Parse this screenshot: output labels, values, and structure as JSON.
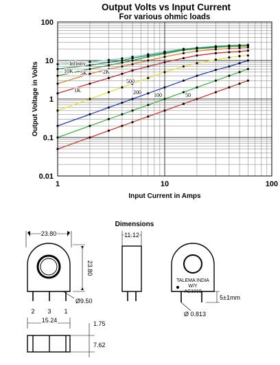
{
  "chart_data": {
    "type": "line",
    "title": "Output Volts vs Input Current",
    "subtitle": "For various ohmic loads",
    "xlabel": "Input Current in Amps",
    "ylabel": "Output Voltage in Volts",
    "xscale": "log",
    "yscale": "log",
    "xlim": [
      1,
      100
    ],
    "ylim": [
      0.01,
      100
    ],
    "xticks": [
      "1",
      "10",
      "100"
    ],
    "yticks": [
      "100",
      "10",
      "1",
      "0.1",
      "0.01"
    ],
    "grid": true,
    "x": [
      1,
      2,
      3,
      4,
      5,
      7,
      10,
      15,
      20,
      30,
      40,
      50,
      60
    ],
    "series": [
      {
        "name": "Infinity",
        "color": "#7fd3dc",
        "values": [
          8.0,
          9.2,
          10.3,
          11.3,
          12.5,
          14.5,
          17.0,
          20.0,
          21.5,
          23.5,
          24.5,
          25.0,
          25.5
        ]
      },
      {
        "name": "10K",
        "color": "#2e8b57",
        "values": [
          6.0,
          7.5,
          9.0,
          10.0,
          11.5,
          13.5,
          16.0,
          19.5,
          21.0,
          23.0,
          24.0,
          24.5,
          25.0
        ]
      },
      {
        "name": "5K",
        "color": "#3a9a3a",
        "values": [
          4.0,
          6.0,
          7.5,
          8.8,
          10.0,
          12.5,
          15.0,
          18.5,
          20.0,
          22.0,
          23.0,
          23.5,
          24.0
        ]
      },
      {
        "name": "2K",
        "color": "#e08030",
        "values": [
          2.5,
          4.5,
          6.0,
          7.0,
          8.0,
          10.0,
          12.5,
          15.5,
          17.5,
          19.5,
          20.5,
          21.0,
          22.0
        ]
      },
      {
        "name": "1K",
        "color": "#d42a2a",
        "values": [
          1.4,
          2.5,
          3.5,
          4.5,
          5.5,
          7.0,
          9.0,
          11.5,
          13.5,
          15.5,
          16.5,
          17.0,
          18.0
        ]
      },
      {
        "name": "500",
        "color": "#e8e040",
        "values": [
          0.5,
          1.0,
          1.5,
          2.0,
          2.5,
          3.5,
          5.0,
          7.0,
          8.5,
          10.5,
          12.0,
          13.0,
          13.5
        ]
      },
      {
        "name": "200",
        "color": "#2040c0",
        "values": [
          0.2,
          0.4,
          0.6,
          0.8,
          1.0,
          1.4,
          2.0,
          3.0,
          4.0,
          5.7,
          7.0,
          8.5,
          10.0
        ]
      },
      {
        "name": "100",
        "color": "#39b839",
        "values": [
          0.1,
          0.2,
          0.3,
          0.4,
          0.5,
          0.7,
          1.0,
          1.5,
          2.0,
          3.0,
          4.0,
          5.0,
          6.0
        ]
      },
      {
        "name": "50",
        "color": "#d0362a",
        "values": [
          0.05,
          0.1,
          0.15,
          0.2,
          0.25,
          0.35,
          0.5,
          0.75,
          1.0,
          1.5,
          2.0,
          2.5,
          3.0
        ]
      }
    ]
  },
  "dimensions": {
    "title": "Dimensions",
    "width_label": "23.80",
    "height_label": "23.80",
    "hole_label": "Ø9.50",
    "side_width_label": "11.12",
    "pin_labels": [
      "2",
      "3",
      "1"
    ],
    "pin_spacing_label": "15.24",
    "bottom_right_label_1": "1.75",
    "bottom_right_label_2": "7.62",
    "pin_length_label": "5±1mm",
    "pin_dia_label": "Ø 0.813",
    "marking_lines": [
      "TALEMA INDIA",
      "W/Y",
      "AC1010"
    ]
  }
}
